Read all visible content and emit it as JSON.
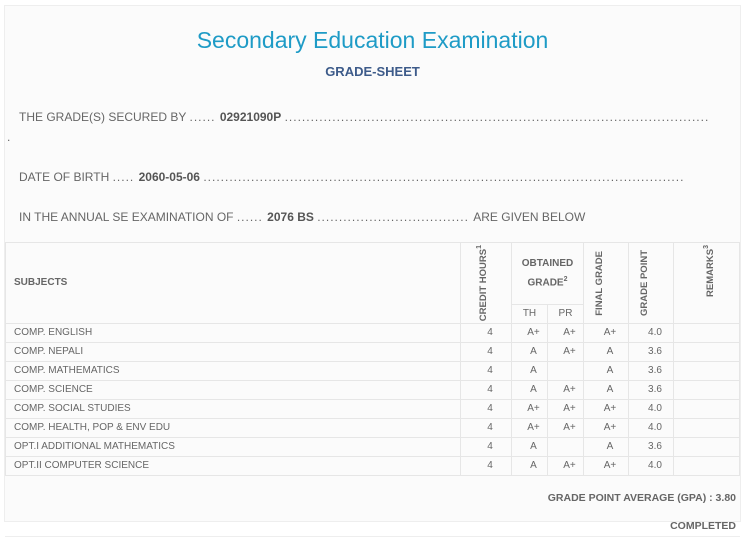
{
  "title": "Secondary Education Examination",
  "subtitle": "GRADE-SHEET",
  "secured_by": {
    "label": "THE GRADE(S) SECURED BY",
    "value": "02921090P"
  },
  "dob": {
    "label": "DATE OF BIRTH",
    "value": "2060-05-06"
  },
  "exam": {
    "label": "IN THE ANNUAL SE EXAMINATION OF",
    "value": "2076 BS",
    "suffix": "ARE GIVEN BELOW"
  },
  "headers": {
    "subjects": "SUBJECTS",
    "credit": "CREDIT HOURS",
    "credit_sup": "1",
    "obtained": "OBTAINED GRADE",
    "obtained_sup": "2",
    "th": "TH",
    "pr": "PR",
    "final": "FINAL GRADE",
    "point": "GRADE POINT",
    "remarks": "REMARKS",
    "remarks_sup": "3"
  },
  "rows": [
    {
      "subject": "COMP. ENGLISH",
      "credit": "4",
      "th": "A+",
      "pr": "A+",
      "final": "A+",
      "point": "4.0",
      "remarks": ""
    },
    {
      "subject": "COMP. NEPALI",
      "credit": "4",
      "th": "A",
      "pr": "A+",
      "final": "A",
      "point": "3.6",
      "remarks": ""
    },
    {
      "subject": "COMP. MATHEMATICS",
      "credit": "4",
      "th": "A",
      "pr": "",
      "final": "A",
      "point": "3.6",
      "remarks": ""
    },
    {
      "subject": "COMP. SCIENCE",
      "credit": "4",
      "th": "A",
      "pr": "A+",
      "final": "A",
      "point": "3.6",
      "remarks": ""
    },
    {
      "subject": "COMP. SOCIAL STUDIES",
      "credit": "4",
      "th": "A+",
      "pr": "A+",
      "final": "A+",
      "point": "4.0",
      "remarks": ""
    },
    {
      "subject": "COMP. HEALTH, POP & ENV EDU",
      "credit": "4",
      "th": "A+",
      "pr": "A+",
      "final": "A+",
      "point": "4.0",
      "remarks": ""
    },
    {
      "subject": "OPT.I ADDITIONAL MATHEMATICS",
      "credit": "4",
      "th": "A",
      "pr": "",
      "final": "A",
      "point": "3.6",
      "remarks": ""
    },
    {
      "subject": "OPT.II COMPUTER SCIENCE",
      "credit": "4",
      "th": "A",
      "pr": "A+",
      "final": "A+",
      "point": "4.0",
      "remarks": ""
    }
  ],
  "gpa": "GRADE POINT AVERAGE (GPA) : 3.80",
  "status": "COMPLETED"
}
